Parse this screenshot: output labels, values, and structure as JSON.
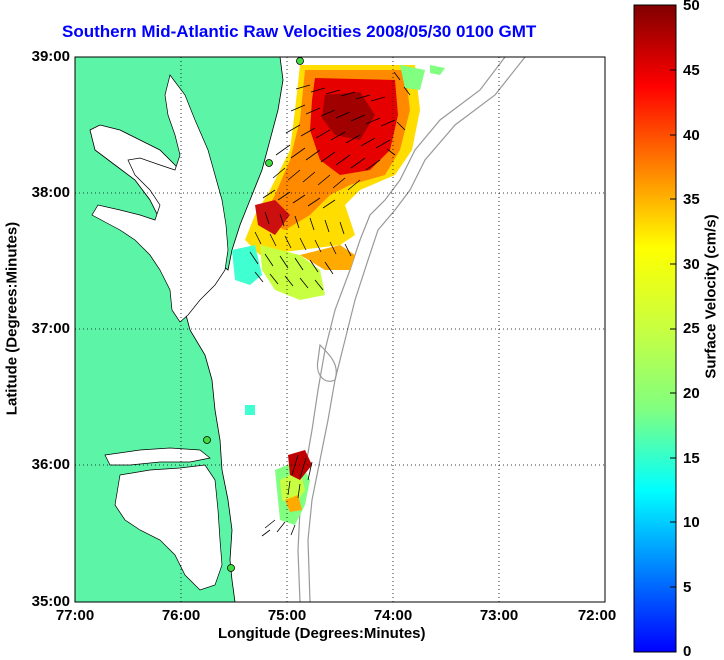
{
  "title": "Southern Mid-Atlantic Raw Velocities 2008/05/30 0100 GMT",
  "x_axis": {
    "label": "Longitude (Degrees:Minutes)",
    "ticks": [
      "77:00",
      "76:00",
      "75:00",
      "74:00",
      "73:00",
      "72:00"
    ]
  },
  "y_axis": {
    "label": "Latitude (Degrees:Minutes)",
    "ticks": [
      "39:00",
      "38:00",
      "37:00",
      "36:00",
      "35:00"
    ]
  },
  "colorbar": {
    "label": "Surface Velocity (cm/s)",
    "ticks": [
      "50",
      "45",
      "40",
      "35",
      "30",
      "25",
      "20",
      "15",
      "10",
      "5",
      "0"
    ],
    "min": 0,
    "max": 50
  },
  "colors": {
    "title": "#0000ff",
    "land": "#5cf5a8",
    "water": "#ffffff",
    "bathymetry": "#999999"
  },
  "map": {
    "lon_range": [
      -77,
      -72
    ],
    "lat_range": [
      35,
      39
    ],
    "grid": "dotted"
  }
}
